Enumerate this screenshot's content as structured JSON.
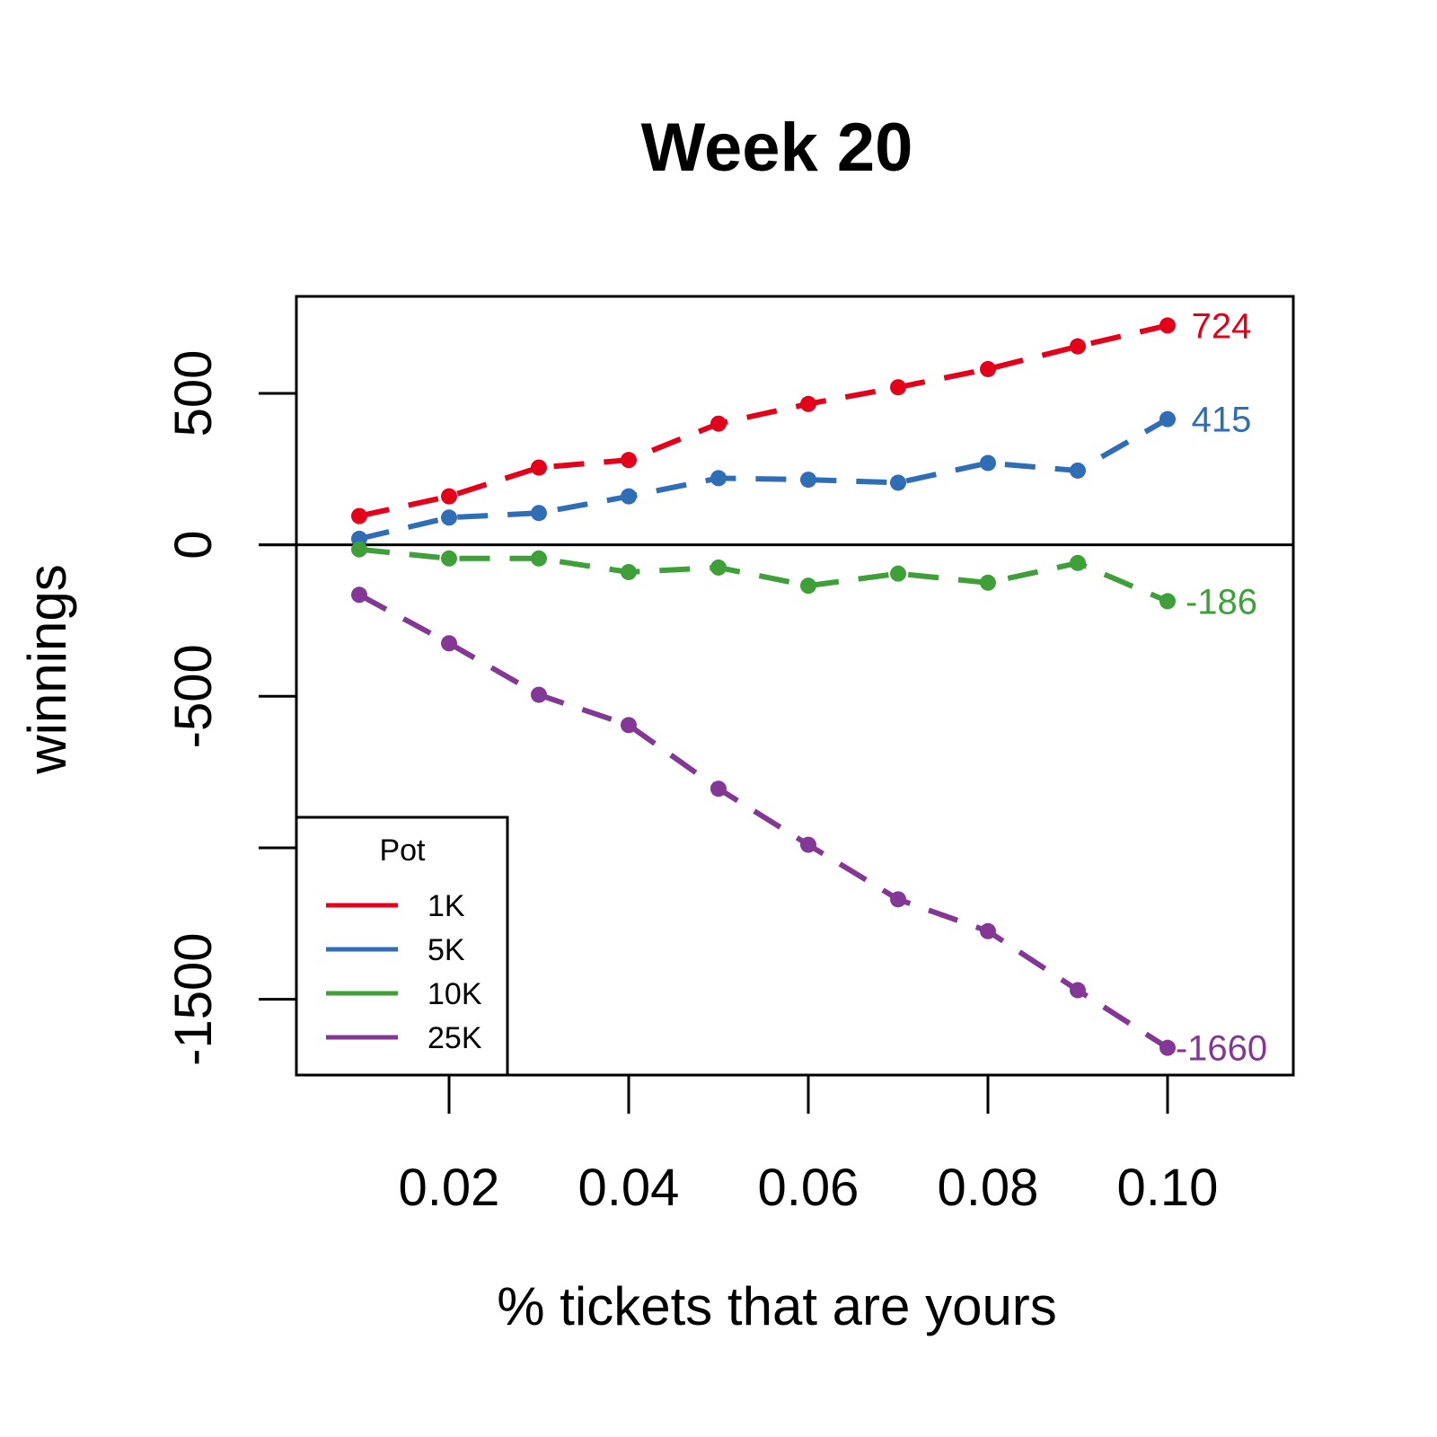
{
  "chart_data": {
    "type": "line",
    "title": "Week 20",
    "xlabel": "% tickets that are yours",
    "ylabel": "winnings",
    "x": [
      0.01,
      0.02,
      0.03,
      0.04,
      0.05,
      0.06,
      0.07,
      0.08,
      0.09,
      0.1
    ],
    "xlim": [
      0.003,
      0.114
    ],
    "ylim": [
      -1750,
      820
    ],
    "x_ticks": [
      0.02,
      0.04,
      0.06,
      0.08,
      0.1
    ],
    "x_tick_labels": [
      "0.02",
      "0.04",
      "0.06",
      "0.08",
      "0.10"
    ],
    "y_ticks": [
      -1500,
      -1000,
      -500,
      0,
      500
    ],
    "y_tick_labels": [
      "-1500",
      "",
      "-500",
      "0",
      "500"
    ],
    "reference_line_y": 0,
    "legend": {
      "title": "Pot",
      "position": "bottom-left"
    },
    "series": [
      {
        "name": "1K",
        "color": "#e3001b",
        "values": [
          95,
          160,
          255,
          280,
          400,
          465,
          520,
          580,
          655,
          724
        ],
        "end_label": "724"
      },
      {
        "name": "5K",
        "color": "#2f6db5",
        "values": [
          20,
          90,
          105,
          160,
          220,
          215,
          205,
          270,
          245,
          415
        ],
        "end_label": "415"
      },
      {
        "name": "10K",
        "color": "#3fa03a",
        "values": [
          -15,
          -45,
          -45,
          -90,
          -75,
          -135,
          -95,
          -125,
          -60,
          -186
        ],
        "end_label": "-186"
      },
      {
        "name": "25K",
        "color": "#823894",
        "values": [
          -165,
          -325,
          -495,
          -595,
          -805,
          -990,
          -1170,
          -1275,
          -1470,
          -1660
        ],
        "end_label": "-1660"
      }
    ]
  }
}
